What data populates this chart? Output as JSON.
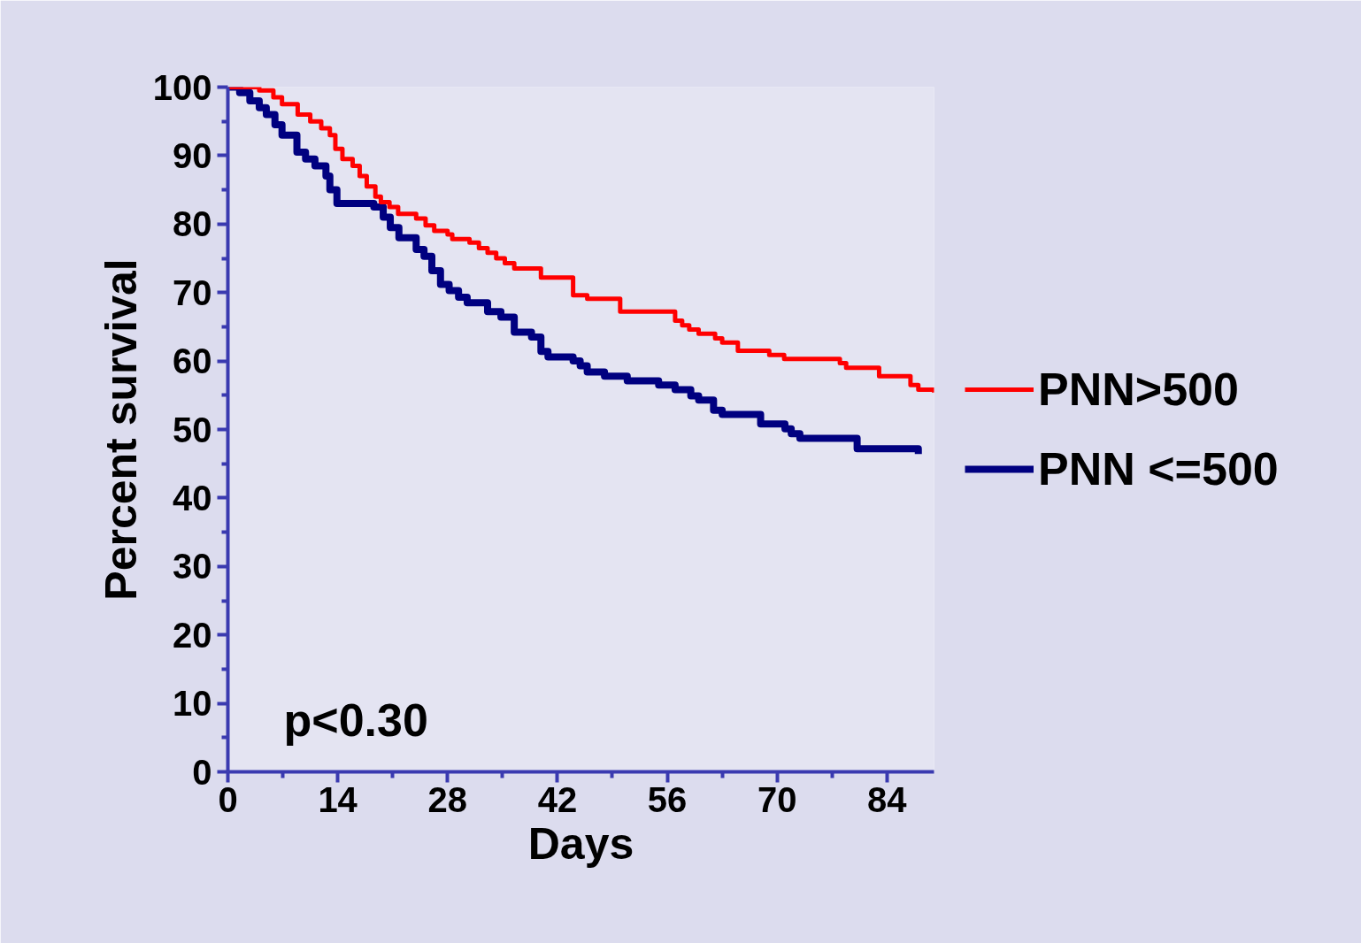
{
  "chart_data": {
    "type": "step",
    "xlabel": "Days",
    "ylabel": "Percent survival",
    "xlim": [
      0,
      90
    ],
    "ylim": [
      0,
      100
    ],
    "xticks": [
      0,
      14,
      28,
      42,
      56,
      70,
      84
    ],
    "yticks": [
      0,
      10,
      20,
      30,
      40,
      50,
      60,
      70,
      80,
      90,
      100
    ],
    "legend": "right",
    "annotations": [
      "p<0.30"
    ],
    "series": [
      {
        "name": "PNN>500",
        "color": "#ff0000",
        "x": [
          0,
          4,
          5.8,
          6.9,
          8.9,
          10.5,
          11.9,
          13,
          13.7,
          14.6,
          15.9,
          16.8,
          17.7,
          18.8,
          19.5,
          20.6,
          21.7,
          24,
          25.2,
          26.3,
          28,
          28.6,
          30.8,
          32,
          33.1,
          34.2,
          35.3,
          36.5,
          39.9,
          44,
          45.8,
          50,
          57,
          57.9,
          58.8,
          60,
          62.1,
          63,
          65,
          69,
          70.9,
          78,
          78.8,
          83,
          87,
          88,
          90
        ],
        "values": [
          100,
          99.5,
          98.5,
          97.5,
          96,
          95,
          94,
          93,
          91,
          89.5,
          88.5,
          87,
          85.5,
          84,
          83.2,
          82.5,
          81.5,
          80.8,
          79.8,
          79,
          78.5,
          77.8,
          77.3,
          76.5,
          75.8,
          75,
          74.3,
          73.5,
          72.2,
          69.6,
          69.1,
          67.2,
          65.9,
          65.2,
          64.6,
          64,
          63.3,
          62.7,
          61.5,
          60.9,
          60.3,
          59.7,
          59,
          57.8,
          56.5,
          55.8,
          55.4
        ]
      },
      {
        "name": "PNN <=500",
        "color": "#000080",
        "x": [
          0,
          1.5,
          2.8,
          4,
          4.9,
          6,
          6.9,
          8.8,
          9.9,
          11.1,
          12.5,
          13,
          13.9,
          18.6,
          19.8,
          20.7,
          21.8,
          24,
          25,
          26,
          27.1,
          28.2,
          29.4,
          30.5,
          33.1,
          34.8,
          36.5,
          38.7,
          39.9,
          40.8,
          44,
          44.9,
          45.8,
          48,
          50.9,
          54.9,
          57,
          59,
          60,
          61.9,
          63,
          67.9,
          71,
          71.8,
          72.9,
          80.2,
          88
        ],
        "values": [
          100,
          99.2,
          98,
          97,
          96,
          94.5,
          93,
          90.5,
          89.5,
          88.5,
          87,
          85,
          83,
          82.5,
          81,
          79.5,
          78,
          76.3,
          75.3,
          73.2,
          71.2,
          70.3,
          69.3,
          68.5,
          67.2,
          66.4,
          64.2,
          63.5,
          61.4,
          60.6,
          60,
          59.3,
          58.4,
          57.8,
          57.1,
          56.5,
          55.8,
          54.9,
          54.3,
          52.8,
          52.2,
          50.8,
          50.1,
          49.4,
          48.7,
          47.2,
          46.4
        ]
      }
    ]
  }
}
